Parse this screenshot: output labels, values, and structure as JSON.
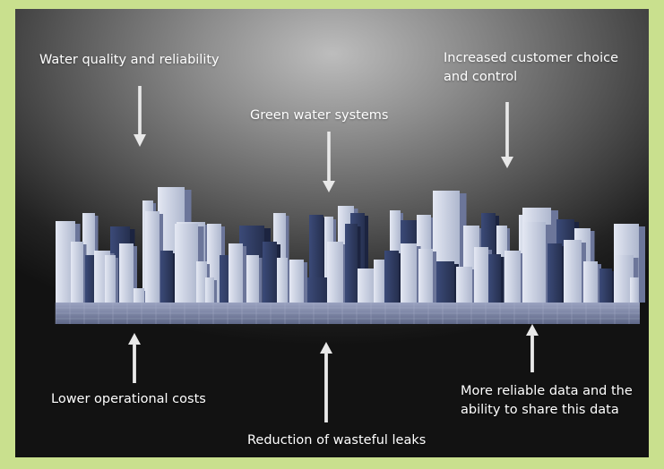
{
  "labels": {
    "water_quality": "Water quality and reliability",
    "customer_choice_1": "Increased customer choice",
    "customer_choice_2": "and control",
    "green_water": "Green water systems",
    "lower_costs": "Lower operational costs",
    "reliable_data_1": "More reliable data and the",
    "reliable_data_2": "ability to share this data",
    "leaks": "Reduction of wasteful leaks"
  },
  "colors": {
    "outer_border": "#c9e08e",
    "text": "#ffffff",
    "arrow": "#e6e6e6",
    "building_light": "#c5cde0",
    "building_dark": "#2f3d66",
    "floor": "#7d86a6"
  }
}
